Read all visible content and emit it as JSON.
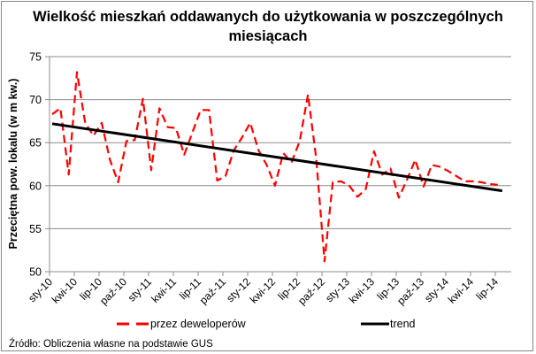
{
  "chart_data": {
    "type": "line",
    "title": "Wielkość mieszkań oddawanych do użytkowania  w poszczególnych miesiącach",
    "title_lines": [
      "Wielkość mieszkań oddawanych do użytkowania  w poszczególnych",
      "miesiącach"
    ],
    "xlabel": "",
    "ylabel": "Przeciętna pow. lokalu (w m kw.)",
    "ylim": [
      50,
      75
    ],
    "yticks": [
      50,
      55,
      60,
      65,
      70,
      75
    ],
    "xtick_labels": [
      "sty-10",
      "kwi-10",
      "lip-10",
      "paź-10",
      "sty-11",
      "kwi-11",
      "lip-11",
      "paź-11",
      "sty-12",
      "kwi-12",
      "lip-12",
      "paź-12",
      "sty-13",
      "kwi-13",
      "lip-13",
      "paź-13",
      "sty-14",
      "kwi-14",
      "lip-14"
    ],
    "grid": true,
    "legend_position": "bottom",
    "x": [
      "sty-10",
      "lut-10",
      "mar-10",
      "kwi-10",
      "maj-10",
      "cze-10",
      "lip-10",
      "sie-10",
      "wrz-10",
      "paź-10",
      "lis-10",
      "gru-10",
      "sty-11",
      "lut-11",
      "mar-11",
      "kwi-11",
      "maj-11",
      "cze-11",
      "lip-11",
      "sie-11",
      "wrz-11",
      "paź-11",
      "lis-11",
      "gru-11",
      "sty-12",
      "lut-12",
      "mar-12",
      "kwi-12",
      "maj-12",
      "cze-12",
      "lip-12",
      "sie-12",
      "wrz-12",
      "paź-12",
      "lis-12",
      "gru-12",
      "sty-13",
      "lut-13",
      "mar-13",
      "kwi-13",
      "maj-13",
      "cze-13",
      "lip-13",
      "sie-13",
      "wrz-13",
      "paź-13",
      "lis-13",
      "gru-13",
      "sty-14",
      "lut-14",
      "mar-14",
      "kwi-14",
      "maj-14",
      "cze-14",
      "lip-14"
    ],
    "series": [
      {
        "name": "przez deweloperów",
        "color": "#ff0000",
        "style": "dashed",
        "values": [
          68.3,
          69.0,
          61.3,
          73.2,
          67.3,
          65.8,
          67.3,
          63.0,
          60.4,
          65.2,
          65.3,
          70.1,
          61.8,
          69.0,
          66.8,
          66.7,
          63.6,
          66.2,
          68.8,
          68.8,
          60.6,
          61.1,
          64.1,
          65.6,
          67.3,
          64.1,
          62.4,
          60.0,
          63.8,
          62.7,
          65.2,
          70.6,
          63.1,
          51.2,
          60.4,
          60.5,
          60.0,
          58.7,
          59.6,
          64.0,
          61.3,
          62.0,
          58.6,
          60.7,
          63.0,
          59.9,
          62.4,
          62.2,
          61.7,
          61.1,
          60.5,
          60.5,
          60.4,
          60.2,
          60.1
        ]
      },
      {
        "name": "trend",
        "color": "#000000",
        "style": "solid",
        "values_start_end": [
          67.2,
          59.4
        ]
      }
    ]
  },
  "legend": {
    "items": [
      {
        "label": "przez deweloperów",
        "color": "#ff0000"
      },
      {
        "label": "trend",
        "color": "#000000"
      }
    ]
  },
  "source": "Źródło: Obliczenia własne na podstawie GUS"
}
